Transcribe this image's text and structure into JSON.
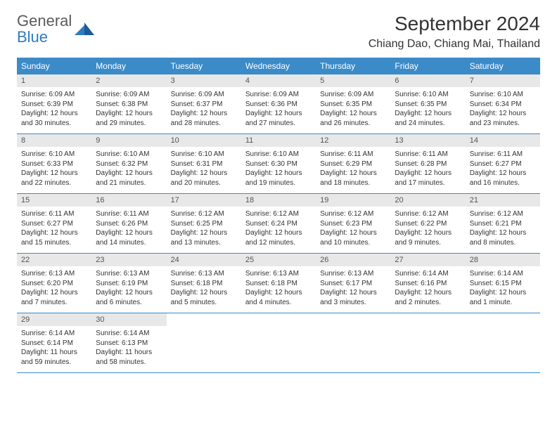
{
  "branding": {
    "logo_word1": "General",
    "logo_word2": "Blue",
    "logo_color_gray": "#5a5a5a",
    "logo_color_blue": "#2f7bbf",
    "logo_mark_color": "#2f7bbf"
  },
  "header": {
    "month_title": "September 2024",
    "location": "Chiang Dao, Chiang Mai, Thailand"
  },
  "styling": {
    "header_row_bg": "#3b8bc9",
    "header_row_text": "#ffffff",
    "daynum_bg": "#e8e8e8",
    "daynum_text": "#555555",
    "cell_bg": "#ffffff",
    "cell_text": "#333333",
    "week_divider": "#3b8bc9",
    "page_bg": "#ffffff",
    "title_fontsize": 28,
    "location_fontsize": 16,
    "weekday_fontsize": 12,
    "daynum_fontsize": 11,
    "cell_fontsize": 10
  },
  "weekdays": [
    "Sunday",
    "Monday",
    "Tuesday",
    "Wednesday",
    "Thursday",
    "Friday",
    "Saturday"
  ],
  "weeks": [
    {
      "days": [
        {
          "num": "1",
          "sunrise": "Sunrise: 6:09 AM",
          "sunset": "Sunset: 6:39 PM",
          "daylight1": "Daylight: 12 hours",
          "daylight2": "and 30 minutes."
        },
        {
          "num": "2",
          "sunrise": "Sunrise: 6:09 AM",
          "sunset": "Sunset: 6:38 PM",
          "daylight1": "Daylight: 12 hours",
          "daylight2": "and 29 minutes."
        },
        {
          "num": "3",
          "sunrise": "Sunrise: 6:09 AM",
          "sunset": "Sunset: 6:37 PM",
          "daylight1": "Daylight: 12 hours",
          "daylight2": "and 28 minutes."
        },
        {
          "num": "4",
          "sunrise": "Sunrise: 6:09 AM",
          "sunset": "Sunset: 6:36 PM",
          "daylight1": "Daylight: 12 hours",
          "daylight2": "and 27 minutes."
        },
        {
          "num": "5",
          "sunrise": "Sunrise: 6:09 AM",
          "sunset": "Sunset: 6:35 PM",
          "daylight1": "Daylight: 12 hours",
          "daylight2": "and 26 minutes."
        },
        {
          "num": "6",
          "sunrise": "Sunrise: 6:10 AM",
          "sunset": "Sunset: 6:35 PM",
          "daylight1": "Daylight: 12 hours",
          "daylight2": "and 24 minutes."
        },
        {
          "num": "7",
          "sunrise": "Sunrise: 6:10 AM",
          "sunset": "Sunset: 6:34 PM",
          "daylight1": "Daylight: 12 hours",
          "daylight2": "and 23 minutes."
        }
      ]
    },
    {
      "days": [
        {
          "num": "8",
          "sunrise": "Sunrise: 6:10 AM",
          "sunset": "Sunset: 6:33 PM",
          "daylight1": "Daylight: 12 hours",
          "daylight2": "and 22 minutes."
        },
        {
          "num": "9",
          "sunrise": "Sunrise: 6:10 AM",
          "sunset": "Sunset: 6:32 PM",
          "daylight1": "Daylight: 12 hours",
          "daylight2": "and 21 minutes."
        },
        {
          "num": "10",
          "sunrise": "Sunrise: 6:10 AM",
          "sunset": "Sunset: 6:31 PM",
          "daylight1": "Daylight: 12 hours",
          "daylight2": "and 20 minutes."
        },
        {
          "num": "11",
          "sunrise": "Sunrise: 6:10 AM",
          "sunset": "Sunset: 6:30 PM",
          "daylight1": "Daylight: 12 hours",
          "daylight2": "and 19 minutes."
        },
        {
          "num": "12",
          "sunrise": "Sunrise: 6:11 AM",
          "sunset": "Sunset: 6:29 PM",
          "daylight1": "Daylight: 12 hours",
          "daylight2": "and 18 minutes."
        },
        {
          "num": "13",
          "sunrise": "Sunrise: 6:11 AM",
          "sunset": "Sunset: 6:28 PM",
          "daylight1": "Daylight: 12 hours",
          "daylight2": "and 17 minutes."
        },
        {
          "num": "14",
          "sunrise": "Sunrise: 6:11 AM",
          "sunset": "Sunset: 6:27 PM",
          "daylight1": "Daylight: 12 hours",
          "daylight2": "and 16 minutes."
        }
      ]
    },
    {
      "days": [
        {
          "num": "15",
          "sunrise": "Sunrise: 6:11 AM",
          "sunset": "Sunset: 6:27 PM",
          "daylight1": "Daylight: 12 hours",
          "daylight2": "and 15 minutes."
        },
        {
          "num": "16",
          "sunrise": "Sunrise: 6:11 AM",
          "sunset": "Sunset: 6:26 PM",
          "daylight1": "Daylight: 12 hours",
          "daylight2": "and 14 minutes."
        },
        {
          "num": "17",
          "sunrise": "Sunrise: 6:12 AM",
          "sunset": "Sunset: 6:25 PM",
          "daylight1": "Daylight: 12 hours",
          "daylight2": "and 13 minutes."
        },
        {
          "num": "18",
          "sunrise": "Sunrise: 6:12 AM",
          "sunset": "Sunset: 6:24 PM",
          "daylight1": "Daylight: 12 hours",
          "daylight2": "and 12 minutes."
        },
        {
          "num": "19",
          "sunrise": "Sunrise: 6:12 AM",
          "sunset": "Sunset: 6:23 PM",
          "daylight1": "Daylight: 12 hours",
          "daylight2": "and 10 minutes."
        },
        {
          "num": "20",
          "sunrise": "Sunrise: 6:12 AM",
          "sunset": "Sunset: 6:22 PM",
          "daylight1": "Daylight: 12 hours",
          "daylight2": "and 9 minutes."
        },
        {
          "num": "21",
          "sunrise": "Sunrise: 6:12 AM",
          "sunset": "Sunset: 6:21 PM",
          "daylight1": "Daylight: 12 hours",
          "daylight2": "and 8 minutes."
        }
      ]
    },
    {
      "days": [
        {
          "num": "22",
          "sunrise": "Sunrise: 6:13 AM",
          "sunset": "Sunset: 6:20 PM",
          "daylight1": "Daylight: 12 hours",
          "daylight2": "and 7 minutes."
        },
        {
          "num": "23",
          "sunrise": "Sunrise: 6:13 AM",
          "sunset": "Sunset: 6:19 PM",
          "daylight1": "Daylight: 12 hours",
          "daylight2": "and 6 minutes."
        },
        {
          "num": "24",
          "sunrise": "Sunrise: 6:13 AM",
          "sunset": "Sunset: 6:18 PM",
          "daylight1": "Daylight: 12 hours",
          "daylight2": "and 5 minutes."
        },
        {
          "num": "25",
          "sunrise": "Sunrise: 6:13 AM",
          "sunset": "Sunset: 6:18 PM",
          "daylight1": "Daylight: 12 hours",
          "daylight2": "and 4 minutes."
        },
        {
          "num": "26",
          "sunrise": "Sunrise: 6:13 AM",
          "sunset": "Sunset: 6:17 PM",
          "daylight1": "Daylight: 12 hours",
          "daylight2": "and 3 minutes."
        },
        {
          "num": "27",
          "sunrise": "Sunrise: 6:14 AM",
          "sunset": "Sunset: 6:16 PM",
          "daylight1": "Daylight: 12 hours",
          "daylight2": "and 2 minutes."
        },
        {
          "num": "28",
          "sunrise": "Sunrise: 6:14 AM",
          "sunset": "Sunset: 6:15 PM",
          "daylight1": "Daylight: 12 hours",
          "daylight2": "and 1 minute."
        }
      ]
    },
    {
      "days": [
        {
          "num": "29",
          "sunrise": "Sunrise: 6:14 AM",
          "sunset": "Sunset: 6:14 PM",
          "daylight1": "Daylight: 11 hours",
          "daylight2": "and 59 minutes."
        },
        {
          "num": "30",
          "sunrise": "Sunrise: 6:14 AM",
          "sunset": "Sunset: 6:13 PM",
          "daylight1": "Daylight: 11 hours",
          "daylight2": "and 58 minutes."
        },
        {
          "empty": true
        },
        {
          "empty": true
        },
        {
          "empty": true
        },
        {
          "empty": true
        },
        {
          "empty": true
        }
      ]
    }
  ]
}
